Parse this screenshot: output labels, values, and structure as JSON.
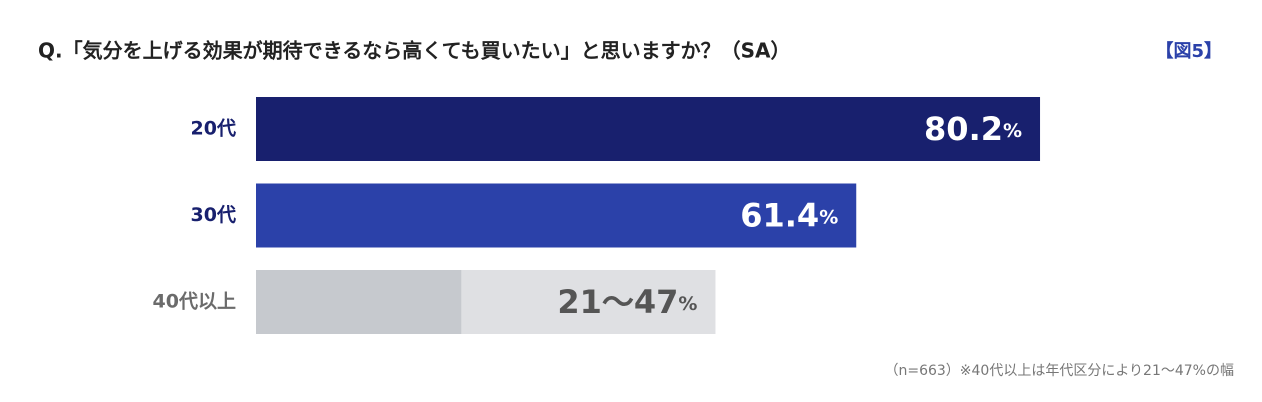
{
  "chart_data": {
    "type": "bar",
    "title": "Q.「気分を上げる効果が期待できるなら高くても買いたい」と思いますか？（SA）",
    "figure_label": "【図5】",
    "note": "（n=663）※40代以上は年代区分により21〜47%の幅",
    "categories": [
      "20代",
      "30代",
      "40代以上"
    ],
    "values": [
      80.2,
      61.4,
      47
    ],
    "value_labels": [
      "80.2%",
      "61.4%",
      "21〜47%"
    ],
    "range_low": [
      null,
      null,
      21
    ],
    "colors": [
      "#18206e",
      "#2b41a9",
      "#dfe0e3"
    ],
    "range_low_color": "#c6c9ce",
    "category_colors": [
      "#18206e",
      "#18206e",
      "#6b6b6b"
    ],
    "value_label_colors": [
      "#ffffff",
      "#ffffff",
      "#555555"
    ]
  }
}
